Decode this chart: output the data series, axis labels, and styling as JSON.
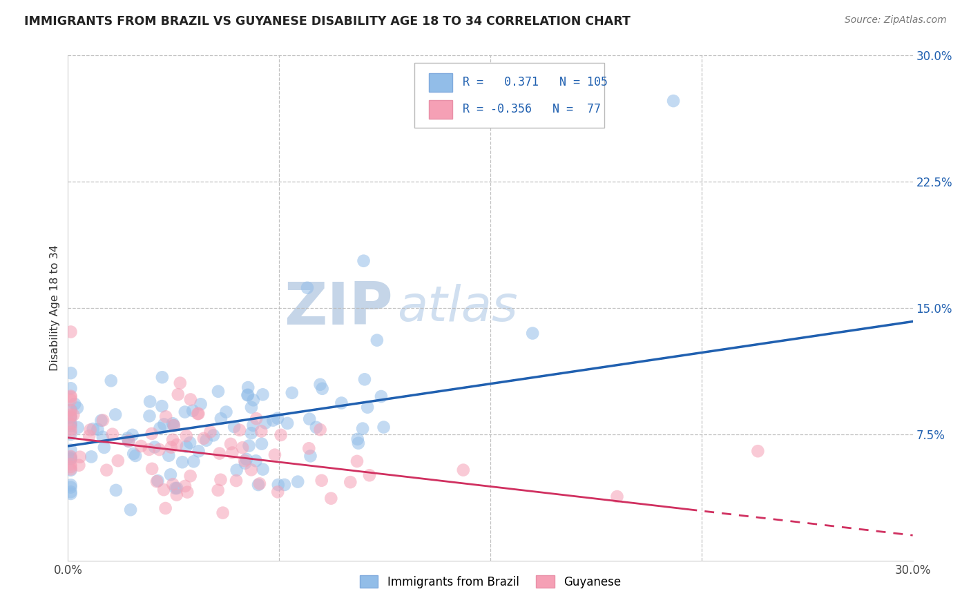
{
  "title": "IMMIGRANTS FROM BRAZIL VS GUYANESE DISABILITY AGE 18 TO 34 CORRELATION CHART",
  "source": "Source: ZipAtlas.com",
  "ylabel": "Disability Age 18 to 34",
  "xlim": [
    0.0,
    0.3
  ],
  "ylim": [
    0.0,
    0.3
  ],
  "ytick_positions": [
    0.075,
    0.15,
    0.225,
    0.3
  ],
  "xtick_positions": [
    0.0,
    0.075,
    0.15,
    0.225,
    0.3
  ],
  "legend_label1": "Immigrants from Brazil",
  "legend_label2": "Guyanese",
  "r1": 0.371,
  "n1": 105,
  "r2": -0.356,
  "n2": 77,
  "color_blue": "#92BDE8",
  "color_pink": "#F5A0B5",
  "line_color_blue": "#2060B0",
  "line_color_pink": "#D03060",
  "background_color": "#FFFFFF",
  "watermark_zip_color": "#C5D5E8",
  "watermark_atlas_color": "#D0DFF0",
  "grid_color": "#BBBBBB",
  "seed": 42,
  "brazil_line": [
    0.068,
    0.142
  ],
  "guyanese_line": [
    0.073,
    0.015
  ],
  "guyanese_line_solid_end": 0.22
}
